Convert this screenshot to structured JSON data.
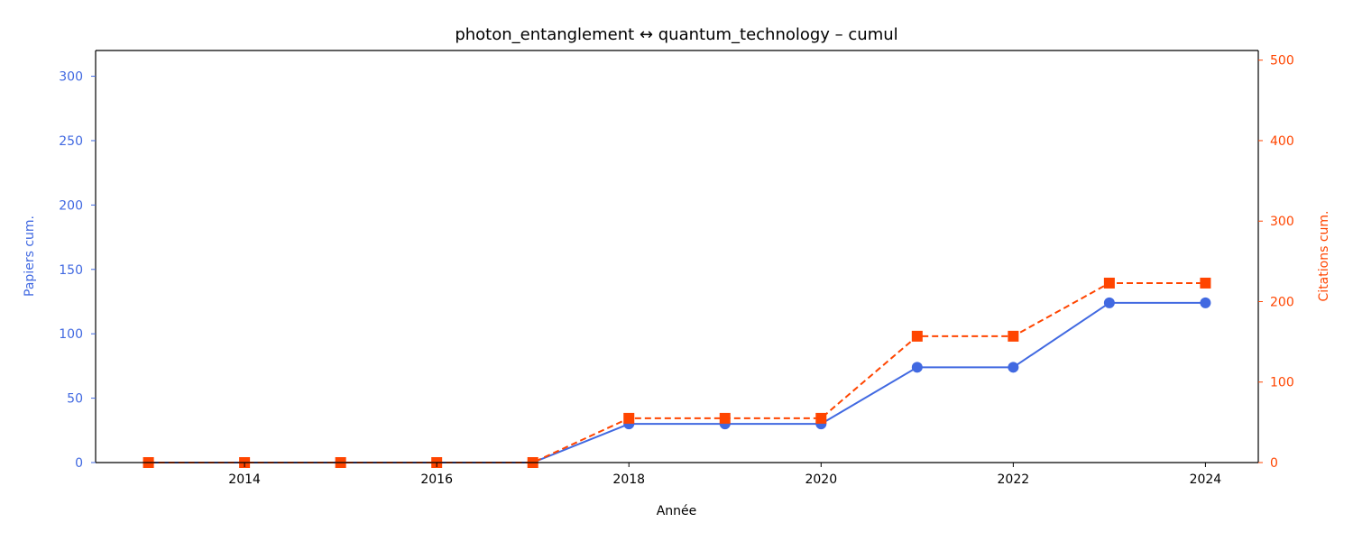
{
  "chart_data": {
    "type": "line",
    "title": "photon_entanglement  ↔  quantum_technology  –  cumul",
    "xlabel": "Année",
    "ylabel_left": "Papiers cum.",
    "ylabel_right": "Citations cum.",
    "x": [
      2013,
      2014,
      2015,
      2016,
      2017,
      2018,
      2019,
      2020,
      2021,
      2022,
      2023,
      2024
    ],
    "xlim": [
      2012.45,
      2024.55
    ],
    "xticks": [
      2014,
      2016,
      2018,
      2020,
      2022,
      2024
    ],
    "ylim_left": [
      0,
      320
    ],
    "yticks_left": [
      0,
      50,
      100,
      150,
      200,
      250,
      300
    ],
    "ylim_right": [
      0,
      512
    ],
    "yticks_right": [
      0,
      100,
      200,
      300,
      400,
      500
    ],
    "grid": false,
    "series": [
      {
        "axis": "left",
        "color": "#4169e1",
        "style": "solid",
        "marker": "circle",
        "values": [
          0,
          0,
          0,
          0,
          0,
          30,
          30,
          30,
          74,
          74,
          124,
          124
        ]
      },
      {
        "axis": "right",
        "color": "#ff4500",
        "style": "dashed",
        "marker": "square",
        "values": [
          0,
          0,
          0,
          0,
          0,
          55,
          55,
          55,
          157,
          157,
          223,
          223
        ]
      }
    ]
  }
}
